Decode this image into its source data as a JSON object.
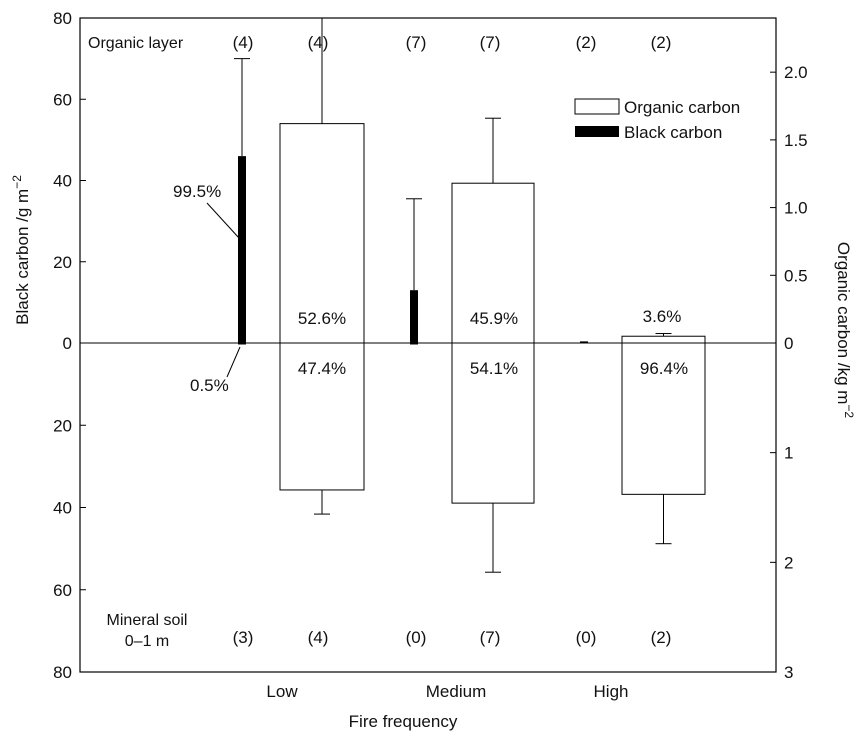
{
  "chart_data": {
    "type": "bar",
    "xlabel": "Fire frequency",
    "categories": [
      "Low",
      "Medium",
      "High"
    ],
    "left_axis": {
      "label_main": "Black carbon /g m",
      "label_sup": "−2",
      "range_up": [
        0,
        80
      ],
      "range_down": [
        0,
        80
      ],
      "ticks_up": [
        0,
        20,
        40,
        60,
        80
      ],
      "ticks_down": [
        20,
        40,
        60,
        80
      ]
    },
    "right_axis": {
      "label_main": "Organic carbon /kg m",
      "label_sup": "−2",
      "range_up": [
        0,
        2.4
      ],
      "range_down": [
        0,
        3
      ],
      "ticks_up": [
        "0",
        "0.5",
        "1.0",
        "1.5",
        "2.0"
      ],
      "ticks_up_values": [
        0,
        0.5,
        1.0,
        1.5,
        2.0
      ],
      "ticks_down": [
        "1",
        "2",
        "3"
      ],
      "ticks_down_values": [
        1,
        2,
        3
      ]
    },
    "series": [
      {
        "name": "Organic carbon",
        "unit": "kg m-2",
        "organic_layer": [
          1.62,
          1.18,
          0.05
        ],
        "organic_layer_error_top": [
          2.4,
          1.66,
          0.07
        ],
        "mineral_soil": [
          1.34,
          1.46,
          1.38
        ],
        "mineral_soil_error_bottom": [
          1.56,
          2.09,
          1.83
        ],
        "pct_organic": [
          "52.6%",
          "45.9%",
          "3.6%"
        ],
        "pct_mineral": [
          "47.4%",
          "54.1%",
          "96.4%"
        ]
      },
      {
        "name": "Black carbon",
        "unit": "g m-2",
        "organic_layer": [
          46,
          13,
          0.4
        ],
        "organic_layer_error_top": [
          70,
          35.5,
          0.4
        ],
        "mineral_soil": [
          0.3,
          0.3,
          0
        ],
        "pct_organic": [
          "99.5%",
          "",
          ""
        ],
        "pct_mineral": [
          "0.5%",
          "",
          ""
        ]
      }
    ],
    "organic_layer_label": "Organic layer",
    "organic_layer_n": {
      "black": [
        "(4)",
        "(7)",
        "(2)"
      ],
      "organic": [
        "(4)",
        "(7)",
        "(2)"
      ]
    },
    "mineral_soil_label_line1": "Mineral soil",
    "mineral_soil_label_line2": "0–1 m",
    "mineral_soil_n": {
      "black": [
        "(3)",
        "(0)",
        "(0)"
      ],
      "organic": [
        "(4)",
        "(7)",
        "(2)"
      ]
    },
    "legend": [
      "Organic carbon",
      "Black carbon"
    ],
    "legend_position": "top-right",
    "grid": false
  }
}
